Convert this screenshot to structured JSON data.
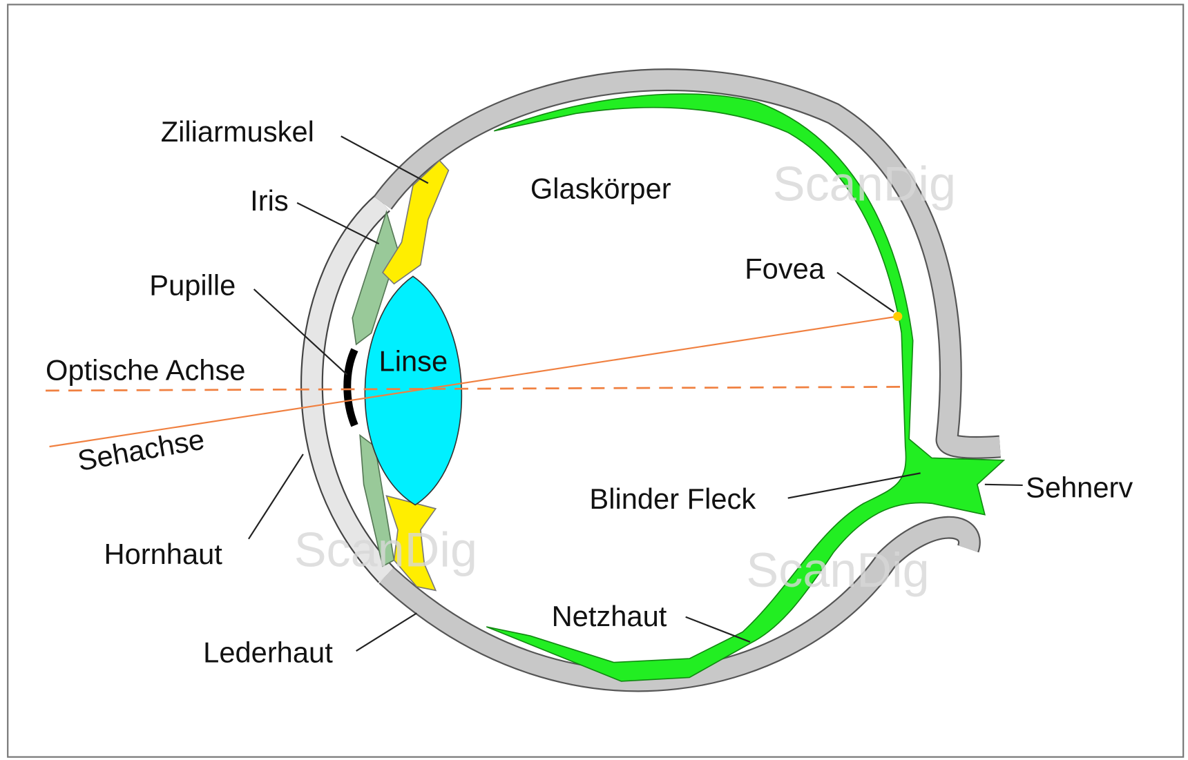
{
  "labels": [
    "Ziliarmuskel",
    "Iris",
    "Pupille",
    "Optische Achse",
    "Sehachse",
    "Hornhaut",
    "Lederhaut",
    "Linse",
    "Glaskörper",
    "Fovea",
    "Blinder Fleck",
    "Sehnerv",
    "Netzhaut"
  ],
  "watermark": "ScanDig"
}
